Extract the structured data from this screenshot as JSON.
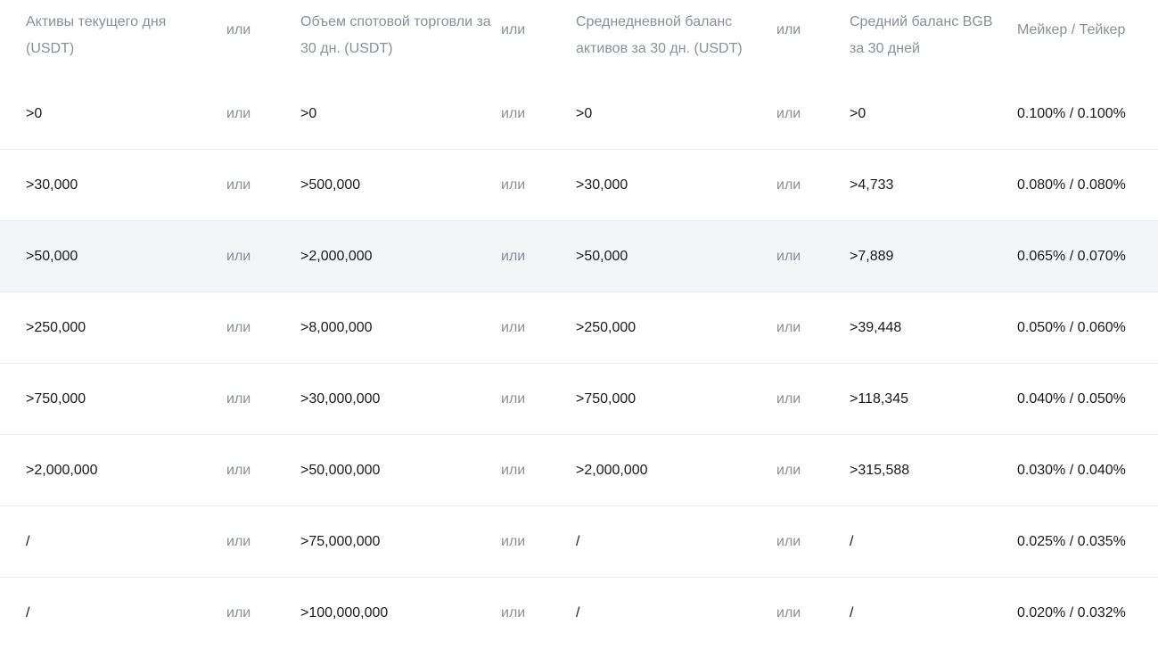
{
  "table": {
    "headers": {
      "col1": "Активы текущего дня (USDT)",
      "col2": "Объем спотовой торговли за 30 дн. (USDT)",
      "col3": "Среднедневной баланс активов за 30 дн. (USDT)",
      "col4": "Средний баланс BGB за 30 дней",
      "col5": "Мейкер / Тейкер",
      "or": "или"
    },
    "rows": [
      {
        "assets": ">0",
        "volume": ">0",
        "avg_balance": ">0",
        "bgb": ">0",
        "fee": "0.100% / 0.100%"
      },
      {
        "assets": ">30,000",
        "volume": ">500,000",
        "avg_balance": ">30,000",
        "bgb": ">4,733",
        "fee": "0.080% / 0.080%"
      },
      {
        "assets": ">50,000",
        "volume": ">2,000,000",
        "avg_balance": ">50,000",
        "bgb": ">7,889",
        "fee": "0.065% / 0.070%"
      },
      {
        "assets": ">250,000",
        "volume": ">8,000,000",
        "avg_balance": ">250,000",
        "bgb": ">39,448",
        "fee": "0.050% / 0.060%"
      },
      {
        "assets": ">750,000",
        "volume": ">30,000,000",
        "avg_balance": ">750,000",
        "bgb": ">118,345",
        "fee": "0.040% / 0.050%"
      },
      {
        "assets": ">2,000,000",
        "volume": ">50,000,000",
        "avg_balance": ">2,000,000",
        "bgb": ">315,588",
        "fee": "0.030% / 0.040%"
      },
      {
        "assets": "/",
        "volume": ">75,000,000",
        "avg_balance": "/",
        "bgb": "/",
        "fee": "0.025% / 0.035%"
      },
      {
        "assets": "/",
        "volume": ">100,000,000",
        "avg_balance": "/",
        "bgb": "/",
        "fee": "0.020% / 0.032%"
      }
    ],
    "highlighted_row": 2
  },
  "colors": {
    "text": "#1a1a1a",
    "muted": "#8a8f98",
    "row_highlight": "#f4f5f6",
    "divider": "#ebebeb"
  }
}
